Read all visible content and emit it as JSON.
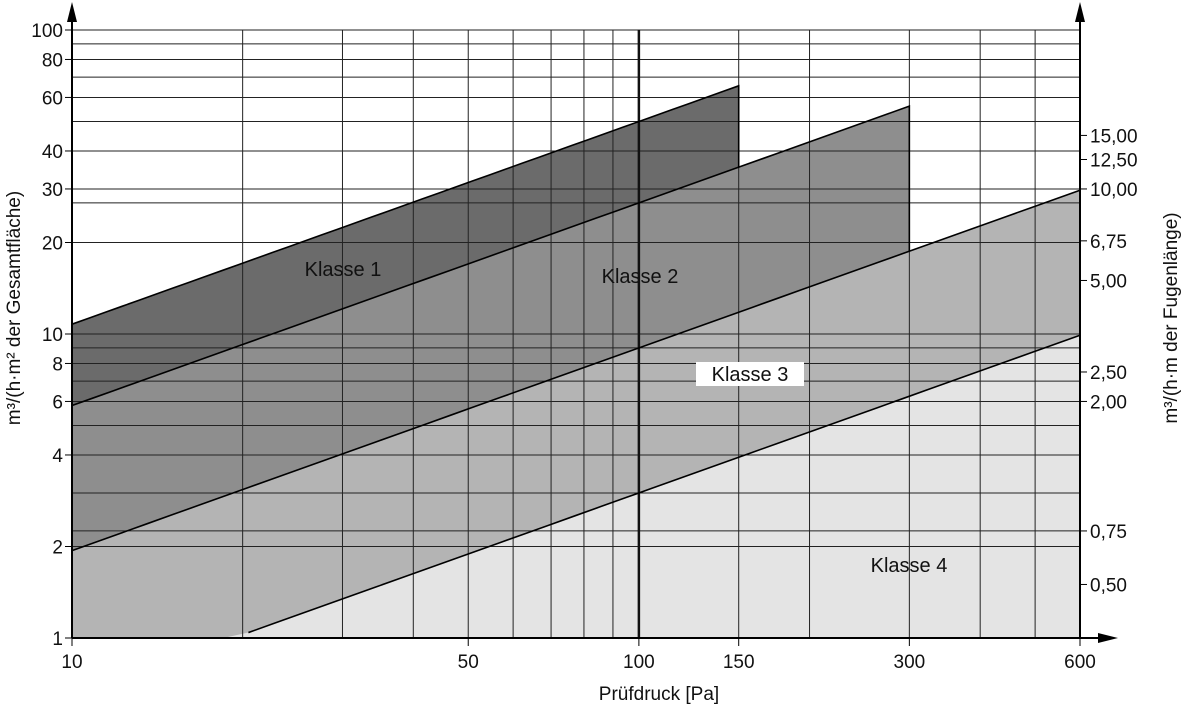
{
  "chart_data": {
    "type": "area",
    "x_scale": "log",
    "y_scale": "log",
    "xlabel": "Prüfdruck [Pa]",
    "ylabel_left": "m³/(h·m² der Gesamtfläche)",
    "ylabel_right": "m³/(h·m der Fugenlänge)",
    "xlim": [
      10,
      600
    ],
    "ylim": [
      1,
      100
    ],
    "x_ticks": [
      10,
      50,
      100,
      150,
      300,
      600
    ],
    "x_tick_labels": [
      "10",
      "50",
      "100",
      "150",
      "300",
      "600"
    ],
    "x_gridlines": [
      20,
      30,
      40,
      50,
      60,
      70,
      80,
      90,
      100,
      150,
      200,
      300,
      400,
      500
    ],
    "y_ticks_left": [
      1,
      2,
      4,
      6,
      8,
      10,
      20,
      30,
      40,
      60,
      80,
      100
    ],
    "y_tick_labels_left": [
      "1",
      "2",
      "4",
      "6",
      "8",
      "10",
      "20",
      "30",
      "40",
      "60",
      "80",
      "100"
    ],
    "y_ticks_right_at": [
      0.5,
      0.75,
      2,
      2.5,
      5,
      6.75,
      10,
      12.5,
      15
    ],
    "y_tick_labels_right": [
      "0,50",
      "0,75",
      "2,00",
      "2,50",
      "5,00",
      "6,75",
      "10,00",
      "12,50",
      "15,00"
    ],
    "right_axis_factor": 3,
    "y_gridlines": [
      1,
      2,
      2.25,
      3,
      4,
      5,
      6,
      7,
      8,
      9,
      10,
      20,
      27,
      30,
      40,
      50,
      60,
      70,
      80,
      90,
      100
    ],
    "grid": true,
    "series": [
      {
        "name": "Klasse 1",
        "upper_at_100pa": 50,
        "x_start": 10,
        "x_end": 150,
        "color": "#6b6b6b"
      },
      {
        "name": "Klasse 2",
        "upper_at_100pa": 27,
        "x_start": 10,
        "x_end": 300,
        "color": "#8e8e8e"
      },
      {
        "name": "Klasse 3",
        "upper_at_100pa": 9,
        "x_start": 10,
        "x_end": 600,
        "color": "#b4b4b4"
      },
      {
        "name": "Klasse 4",
        "upper_at_100pa": 3,
        "x_start": 10,
        "x_end": 600,
        "color": "#e4e4e4"
      }
    ],
    "pressure_exponent": 0.6667,
    "labels": {
      "k1": "Klasse 1",
      "k2": "Klasse 2",
      "k3": "Klasse 3",
      "k4": "Klasse 4"
    }
  }
}
